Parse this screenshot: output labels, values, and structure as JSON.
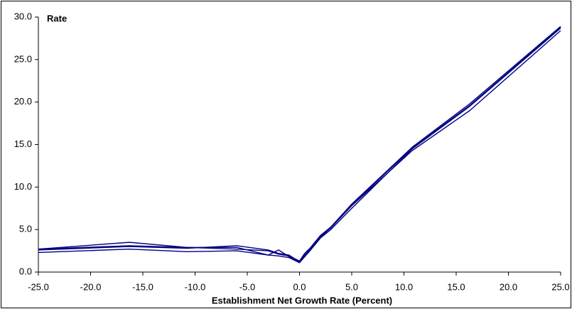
{
  "chart_data": {
    "type": "line",
    "y_label": "Rate",
    "x_label": "Establishment Net Growth Rate (Percent)",
    "x": [
      -25,
      -16.3,
      -10.8,
      -6,
      -3,
      -2,
      -1,
      -0.5,
      0,
      0.5,
      1,
      2,
      3,
      5,
      10.8,
      16.3,
      25
    ],
    "series": [
      {
        "color": "#000080",
        "values": [
          2.7,
          3.5,
          2.9,
          2.9,
          2.0,
          2.6,
          1.8,
          1.5,
          1.2,
          2.0,
          2.5,
          4.0,
          5.0,
          7.5,
          14.5,
          19.5,
          28.7
        ]
      },
      {
        "color": "#000080",
        "values": [
          2.3,
          2.7,
          2.4,
          2.5,
          2.0,
          1.9,
          1.7,
          1.4,
          1.1,
          1.8,
          2.5,
          4.2,
          5.2,
          7.8,
          14.3,
          19.0,
          28.4
        ]
      },
      {
        "color": "#000080",
        "values": [
          2.6,
          3.0,
          2.8,
          3.1,
          2.6,
          2.2,
          2.0,
          1.6,
          1.3,
          2.2,
          2.8,
          4.3,
          5.3,
          8.0,
          14.7,
          19.8,
          28.9
        ]
      },
      {
        "color": "#000080",
        "values": [
          2.7,
          3.1,
          2.9,
          2.7,
          2.5,
          2.1,
          1.9,
          1.5,
          1.2,
          2.0,
          2.7,
          4.1,
          5.2,
          7.9,
          14.6,
          19.6,
          28.8
        ]
      }
    ],
    "xlim": [
      -25,
      25
    ],
    "xticks": [
      {
        "value": -25,
        "label": "-25.0"
      },
      {
        "value": -20,
        "label": "-20.0"
      },
      {
        "value": -15,
        "label": "-15.0"
      },
      {
        "value": -10,
        "label": "-10.0"
      },
      {
        "value": -5,
        "label": "-5.0"
      },
      {
        "value": 0,
        "label": "0.0"
      },
      {
        "value": 5,
        "label": "5.0"
      },
      {
        "value": 10,
        "label": "10.0"
      },
      {
        "value": 15,
        "label": "15.0"
      },
      {
        "value": 20,
        "label": "20.0"
      },
      {
        "value": 25,
        "label": "25.0"
      }
    ],
    "ylim": [
      0,
      30
    ],
    "yticks": [
      {
        "value": 0,
        "label": "0.0"
      },
      {
        "value": 5,
        "label": "5.0"
      },
      {
        "value": 10,
        "label": "10.0"
      },
      {
        "value": 15,
        "label": "15.0"
      },
      {
        "value": 20,
        "label": "20.0"
      },
      {
        "value": 25,
        "label": "25.0"
      },
      {
        "value": 30,
        "label": "30.0"
      }
    ],
    "grid": false
  }
}
